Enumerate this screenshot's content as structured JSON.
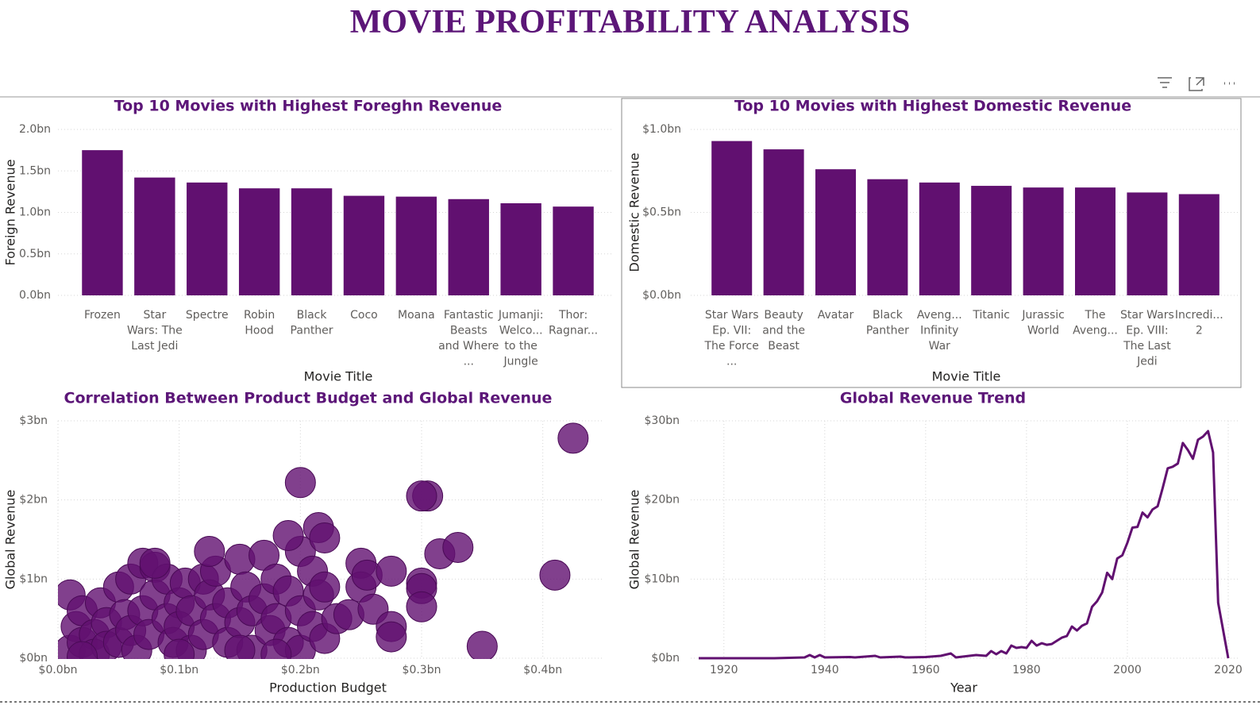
{
  "page_title": "MOVIE PROFITABILITY ANALYSIS",
  "chart_data": [
    {
      "type": "bar",
      "title": "Top 10 Movies with Highest Foreghn Revenue",
      "x_label": "Movie Title",
      "y_label": "Foreign Revenue",
      "categories": [
        "Frozen",
        "Star Wars: The Last Jedi",
        "Spectre",
        "Robin Hood",
        "Black Panther",
        "Coco",
        "Moana",
        "Fantastic Beasts and Where ...",
        "Jumanji: Welco... to the Jungle",
        "Thor: Ragnar..."
      ],
      "values": [
        1.75,
        1.42,
        1.36,
        1.29,
        1.29,
        1.2,
        1.19,
        1.16,
        1.11,
        1.07
      ],
      "color": "#611070",
      "ylim": [
        0,
        2.0
      ],
      "yticks": [
        {
          "value": 0,
          "label": "0.0bn"
        },
        {
          "value": 0.5,
          "label": "0.5bn"
        },
        {
          "value": 1.0,
          "label": "1.0bn"
        },
        {
          "value": 1.5,
          "label": "1.5bn"
        },
        {
          "value": 2.0,
          "label": "2.0bn"
        }
      ],
      "grid": true
    },
    {
      "type": "bar",
      "title": "Top 10 Movies with Highest Domestic Revenue",
      "x_label": "Movie Title",
      "y_label": "Domestic Revenue",
      "categories": [
        "Star Wars Ep. VII: The Force ...",
        "Beauty and the Beast",
        "Avatar",
        "Black Panther",
        "Aveng... Infinity War",
        "Titanic",
        "Jurassic World",
        "The Aveng...",
        "Star Wars Ep. VIII: The Last Jedi",
        "Incredi... 2"
      ],
      "values": [
        0.93,
        0.88,
        0.76,
        0.7,
        0.68,
        0.66,
        0.65,
        0.65,
        0.62,
        0.61
      ],
      "color": "#611070",
      "ylim": [
        0,
        1.0
      ],
      "yticks": [
        {
          "value": 0,
          "label": "$0.0bn"
        },
        {
          "value": 0.5,
          "label": "$0.5bn"
        },
        {
          "value": 1.0,
          "label": "$1.0bn"
        }
      ],
      "grid": true
    },
    {
      "type": "scatter",
      "title": "Correlation Between Product Budget and Global Revenue",
      "x_label": "Production Budget",
      "y_label": "Global Revenue",
      "x": [
        0.01,
        0.01,
        0.015,
        0.02,
        0.02,
        0.03,
        0.03,
        0.035,
        0.04,
        0.04,
        0.05,
        0.05,
        0.055,
        0.06,
        0.06,
        0.065,
        0.07,
        0.07,
        0.075,
        0.08,
        0.08,
        0.09,
        0.09,
        0.095,
        0.1,
        0.1,
        0.105,
        0.11,
        0.11,
        0.12,
        0.12,
        0.125,
        0.13,
        0.13,
        0.14,
        0.14,
        0.15,
        0.15,
        0.155,
        0.16,
        0.16,
        0.17,
        0.17,
        0.175,
        0.18,
        0.18,
        0.19,
        0.19,
        0.2,
        0.2,
        0.2,
        0.21,
        0.21,
        0.215,
        0.22,
        0.22,
        0.23,
        0.24,
        0.25,
        0.25,
        0.255,
        0.26,
        0.275,
        0.275,
        0.275,
        0.3,
        0.3,
        0.3,
        0.305,
        0.315,
        0.33,
        0.35,
        0.41,
        0.425,
        0.2,
        0.19,
        0.215,
        0.22,
        0.125,
        0.08,
        0.3,
        0.02,
        0.1,
        0.15,
        0.18
      ],
      "values": [
        0.8,
        0.1,
        0.4,
        0.2,
        0.6,
        0.3,
        0.05,
        0.7,
        0.45,
        0.15,
        0.9,
        0.2,
        0.55,
        0.35,
        1.0,
        0.1,
        1.2,
        0.6,
        0.3,
        1.15,
        0.8,
        0.5,
        1.0,
        0.2,
        0.7,
        0.4,
        0.95,
        0.1,
        0.6,
        1.0,
        0.3,
        0.8,
        0.5,
        1.1,
        0.2,
        0.7,
        1.25,
        0.45,
        0.9,
        0.6,
        0.1,
        1.3,
        0.75,
        0.35,
        1.0,
        0.5,
        0.2,
        0.85,
        1.35,
        0.6,
        0.1,
        1.1,
        0.4,
        0.8,
        0.9,
        0.25,
        0.5,
        0.55,
        1.2,
        0.9,
        1.05,
        0.62,
        0.4,
        0.27,
        1.1,
        0.95,
        0.88,
        0.65,
        2.05,
        1.32,
        1.4,
        0.15,
        1.05,
        2.78,
        2.22,
        1.55,
        1.65,
        1.52,
        1.35,
        1.2,
        2.05,
        0.02,
        0.05,
        0.1,
        0.05
      ],
      "color": "#611070",
      "xlim": [
        0,
        0.45
      ],
      "ylim": [
        0,
        3
      ],
      "xticks": [
        {
          "value": 0,
          "label": "$0.0bn"
        },
        {
          "value": 0.1,
          "label": "$0.1bn"
        },
        {
          "value": 0.2,
          "label": "$0.2bn"
        },
        {
          "value": 0.3,
          "label": "$0.3bn"
        },
        {
          "value": 0.4,
          "label": "$0.4bn"
        }
      ],
      "yticks": [
        {
          "value": 0,
          "label": "$0bn"
        },
        {
          "value": 1,
          "label": "$1bn"
        },
        {
          "value": 2,
          "label": "$2bn"
        },
        {
          "value": 3,
          "label": "$3bn"
        }
      ],
      "grid": true
    },
    {
      "type": "line",
      "title": "Global Revenue Trend",
      "x_label": "Year",
      "y_label": "Global Revenue",
      "x": [
        1915,
        1930,
        1936,
        1937,
        1938,
        1939,
        1940,
        1945,
        1946,
        1950,
        1951,
        1955,
        1956,
        1960,
        1963,
        1965,
        1966,
        1970,
        1972,
        1973,
        1974,
        1975,
        1976,
        1977,
        1978,
        1979,
        1980,
        1981,
        1982,
        1983,
        1984,
        1985,
        1986,
        1987,
        1988,
        1989,
        1990,
        1991,
        1992,
        1993,
        1994,
        1995,
        1996,
        1997,
        1998,
        1999,
        2000,
        2001,
        2002,
        2003,
        2004,
        2005,
        2006,
        2007,
        2008,
        2009,
        2010,
        2011,
        2012,
        2013,
        2014,
        2015,
        2016,
        2017,
        2018,
        2020
      ],
      "values": [
        0,
        0,
        0.1,
        0.4,
        0.1,
        0.4,
        0.1,
        0.15,
        0.1,
        0.3,
        0.1,
        0.2,
        0.1,
        0.15,
        0.3,
        0.6,
        0.1,
        0.4,
        0.3,
        0.9,
        0.5,
        0.9,
        0.6,
        1.6,
        1.3,
        1.4,
        1.3,
        2.2,
        1.6,
        1.9,
        1.7,
        1.8,
        2.2,
        2.6,
        2.8,
        4.0,
        3.5,
        4.1,
        4.4,
        6.5,
        7.2,
        8.3,
        10.8,
        10.0,
        12.6,
        13.0,
        14.6,
        16.5,
        16.6,
        18.4,
        17.8,
        18.8,
        19.2,
        21.5,
        24.0,
        24.2,
        24.6,
        27.2,
        26.3,
        25.2,
        27.6,
        28.0,
        28.7,
        26.0,
        7.0,
        0
      ],
      "color": "#611070",
      "xlim": [
        1915,
        2020
      ],
      "ylim": [
        0,
        30
      ],
      "xticks": [
        1920,
        1940,
        1960,
        1980,
        2000,
        2020
      ],
      "yticks": [
        {
          "value": 0,
          "label": "$0bn"
        },
        {
          "value": 10,
          "label": "$10bn"
        },
        {
          "value": 20,
          "label": "$20bn"
        },
        {
          "value": 30,
          "label": "$30bn"
        }
      ],
      "grid": true
    }
  ]
}
